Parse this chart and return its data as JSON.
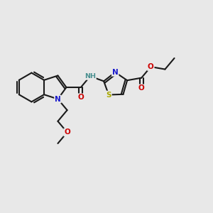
{
  "background_color": "#e8e8e8",
  "bond_color": "#1a1a1a",
  "bond_width": 1.5,
  "atom_colors": {
    "N": "#1a1acc",
    "O": "#cc0000",
    "S": "#aaaa00",
    "C": "#1a1a1a"
  },
  "font_size": 7.5,
  "BL": 0.068
}
